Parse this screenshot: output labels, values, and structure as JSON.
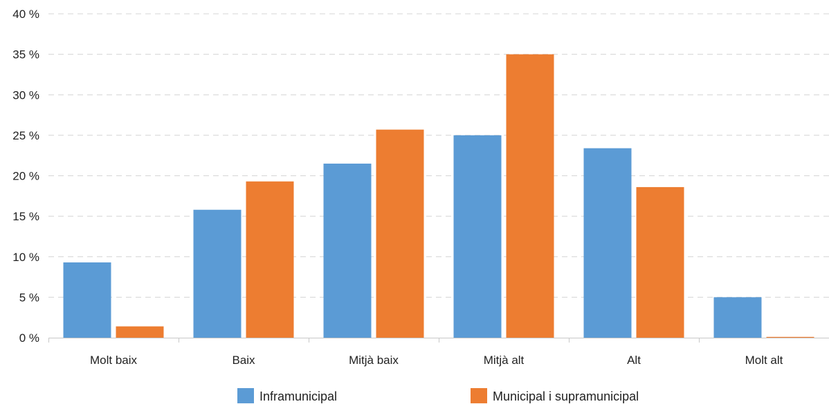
{
  "chart_data": {
    "type": "bar",
    "categories": [
      "Molt baix",
      "Baix",
      "Mitjà baix",
      "Mitjà alt",
      "Alt",
      "Molt alt"
    ],
    "series": [
      {
        "name": "Inframunicipal",
        "color": "#5b9bd5",
        "values": [
          9.3,
          15.8,
          21.5,
          25.0,
          23.4,
          5.0
        ]
      },
      {
        "name": "Municipal i supramunicipal",
        "color": "#ed7d31",
        "values": [
          1.4,
          19.3,
          25.7,
          35.0,
          18.6,
          0.1
        ]
      }
    ],
    "y_tick_labels": [
      "0 %",
      "5 %",
      "10 %",
      "15 %",
      "20 %",
      "25 %",
      "30 %",
      "35 %",
      "40 %"
    ],
    "y_ticks": [
      0,
      5,
      10,
      15,
      20,
      25,
      30,
      35,
      40
    ],
    "ylim": [
      0,
      40
    ],
    "grid": true,
    "legend_position": "bottom"
  }
}
